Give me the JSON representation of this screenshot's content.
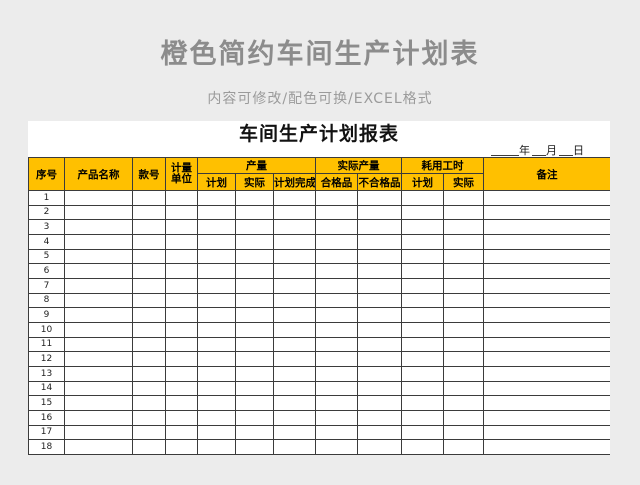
{
  "page": {
    "title": "橙色简约车间生产计划表",
    "subtitle": "内容可修改/配色可换/EXCEL格式"
  },
  "colors": {
    "page_background": "#ECECEC",
    "sheet_background": "#FFFFFF",
    "header_orange": "#FFC000",
    "table_border": "#3B3B3B",
    "page_title_gray": "#8C8C8C"
  },
  "sheet": {
    "title": "车间生产计划报表",
    "date": {
      "year": "年",
      "month": "月",
      "day": "日"
    },
    "header": {
      "seq": "序号",
      "product_name": "产品名称",
      "style_no": "款号",
      "unit_line1": "计量",
      "unit_line2": "单位",
      "output_group": "产量",
      "plan": "计划",
      "actual": "实际",
      "plan_completion": "计划完成%",
      "actual_output_group": "实际产量",
      "qualified": "合格品",
      "unqualified": "不合格品",
      "hours_group": "耗用工时",
      "hours_plan": "计划",
      "hours_actual": "实际",
      "remarks": "备注"
    },
    "rows": [
      "1",
      "2",
      "3",
      "4",
      "5",
      "6",
      "7",
      "8",
      "9",
      "10",
      "11",
      "12",
      "13",
      "14",
      "15",
      "16",
      "17",
      "18"
    ],
    "data_column_count": 11
  }
}
